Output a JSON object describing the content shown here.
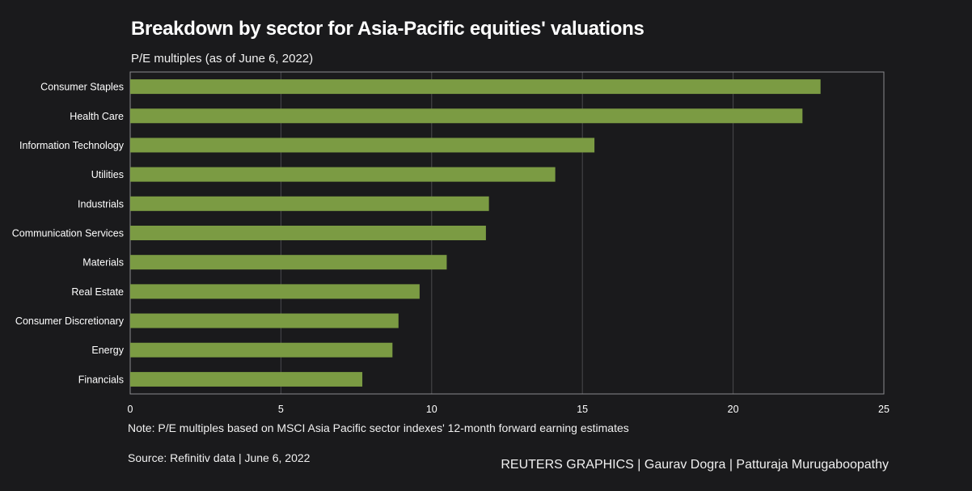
{
  "title": "Breakdown by sector for Asia-Pacific equities' valuations",
  "subtitle": "P/E multiples (as of June 6, 2022)",
  "note": "Note: P/E multiples based on MSCI Asia Pacific sector indexes' 12-month forward earning estimates",
  "source": "Source: Refinitiv data  |  June 6, 2022",
  "credit": "REUTERS GRAPHICS | Gaurav Dogra | Patturaja Murugaboopathy",
  "colors": {
    "background": "#1a1a1c",
    "bar": "#7b9b43",
    "grid": "#4a4a4e",
    "axis": "#8a8a8e",
    "text": "#ffffff"
  },
  "chart_data": {
    "type": "bar",
    "orientation": "horizontal",
    "categories": [
      "Consumer Staples",
      "Health Care",
      "Information Technology",
      "Utilities",
      "Industrials",
      "Communication Services",
      "Materials",
      "Real Estate",
      "Consumer Discretionary",
      "Energy",
      "Financials"
    ],
    "values": [
      22.9,
      22.3,
      15.4,
      14.1,
      11.9,
      11.8,
      10.5,
      9.6,
      8.9,
      8.7,
      7.7
    ],
    "title": "Breakdown by sector for Asia-Pacific equities' valuations",
    "subtitle": "P/E multiples (as of June 6, 2022)",
    "xlabel": "",
    "ylabel": "",
    "xlim": [
      0,
      25
    ],
    "xticks": [
      "0",
      "5",
      "10",
      "15",
      "20",
      "25"
    ],
    "grid": true,
    "legend": "none"
  }
}
